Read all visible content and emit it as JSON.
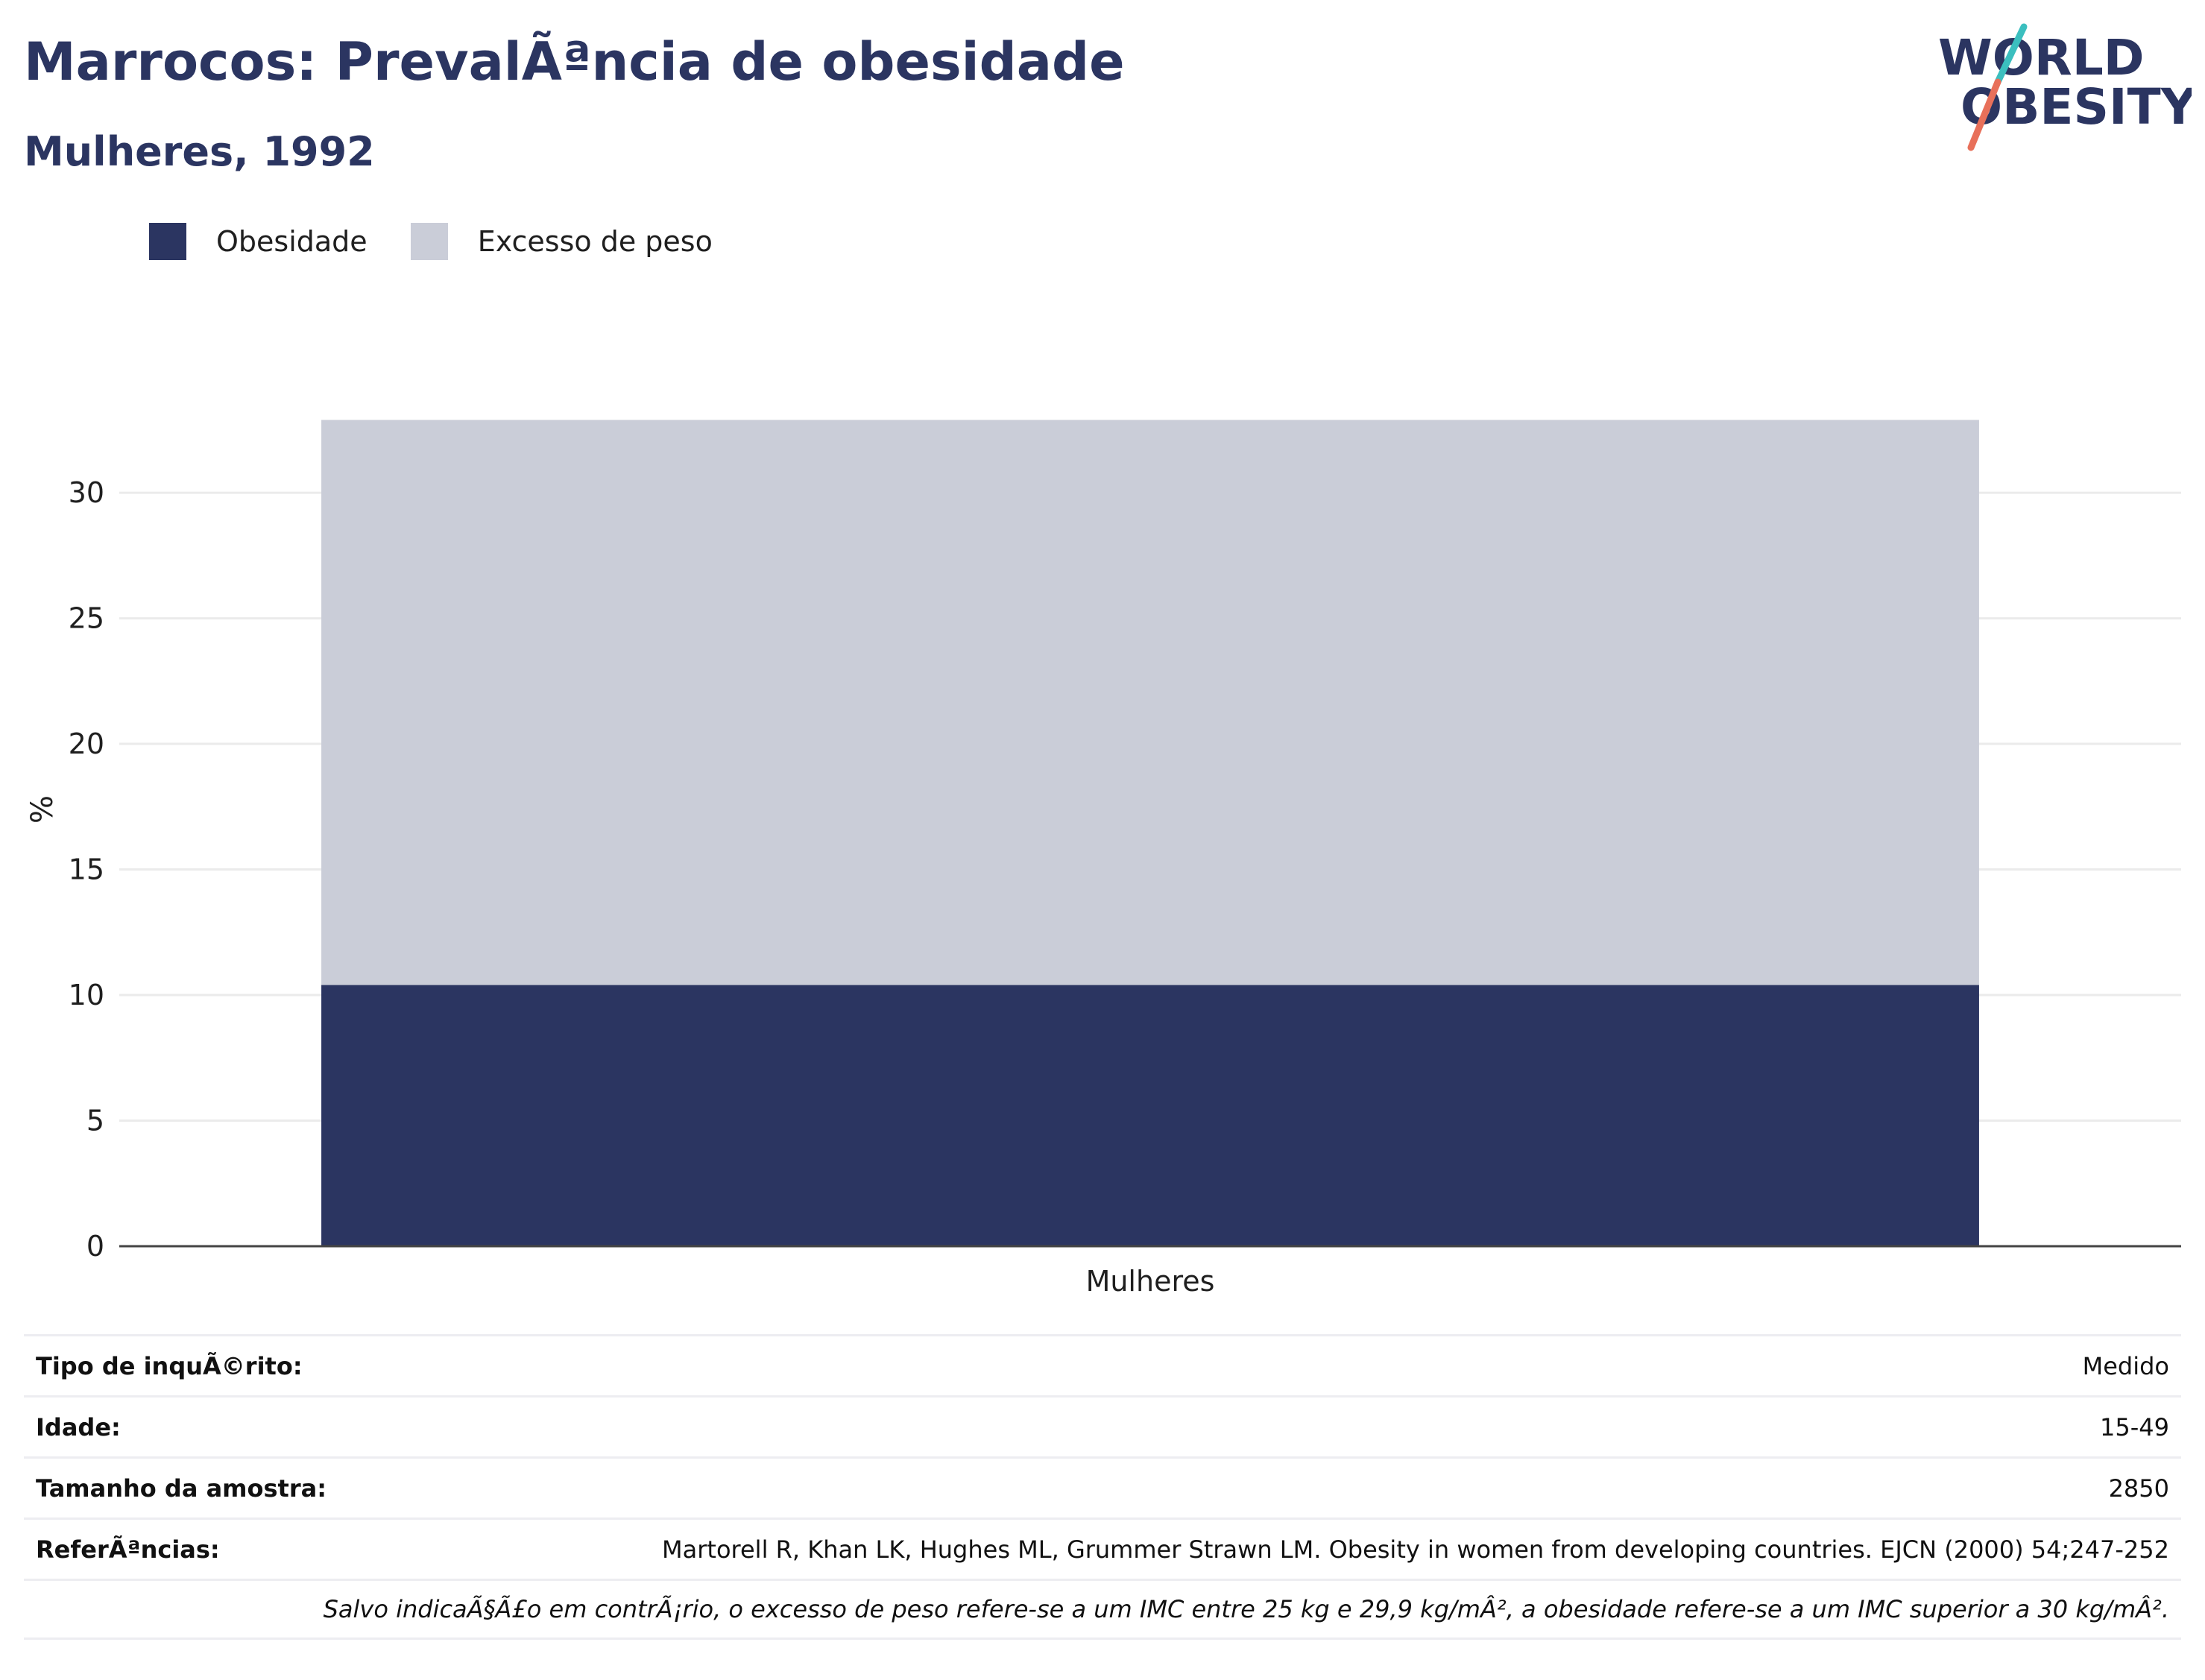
{
  "header": {
    "title": "Marrocos: PrevalÃªncia de obesidade",
    "subtitle": "Mulheres, 1992"
  },
  "logo": {
    "line1": "WORLD",
    "line2": "OBESITY",
    "colors": {
      "text": "#2b3561",
      "stripe_top": "#3bbfbf",
      "stripe_bottom": "#e8705a"
    }
  },
  "legend": {
    "items": [
      {
        "label": "Obesidade",
        "color": "#2b3561"
      },
      {
        "label": "Excesso de peso",
        "color": "#cacdd8"
      }
    ]
  },
  "chart_data": {
    "type": "bar",
    "stacked": true,
    "categories": [
      "Mulheres"
    ],
    "series": [
      {
        "name": "Obesidade",
        "values": [
          10.4
        ],
        "color": "#2b3561"
      },
      {
        "name": "Excesso de peso",
        "values": [
          22.5
        ],
        "color": "#cacdd8"
      }
    ],
    "ylabel": "%",
    "xlabel": "",
    "ylim": [
      0,
      33
    ],
    "yticks": [
      0,
      5,
      10,
      15,
      20,
      25,
      30
    ],
    "grid": true,
    "legend_position": "top-left"
  },
  "info": {
    "rows": [
      {
        "label": "Tipo de inquÃ©rito:",
        "value": "Medido"
      },
      {
        "label": "Idade:",
        "value": "15-49"
      },
      {
        "label": "Tamanho da amostra:",
        "value": "2850"
      },
      {
        "label": "ReferÃªncias:",
        "value": "Martorell R, Khan LK, Hughes ML, Grummer Strawn LM. Obesity in women from developing countries. EJCN (2000) 54;247-252"
      }
    ],
    "footnote": "Salvo indicaÃ§Ã£o em contrÃ¡rio, o excesso de peso refere-se a um IMC entre 25 kg e 29,9 kg/mÂ², a obesidade refere-se a um IMC superior a 30 kg/mÂ²."
  }
}
